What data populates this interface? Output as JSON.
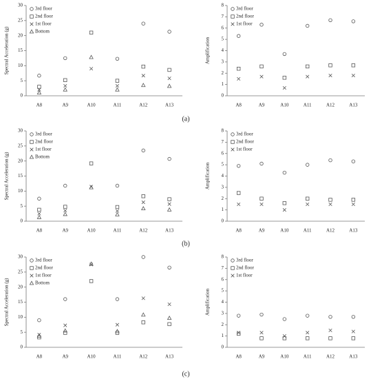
{
  "chart_data": [
    {
      "type": "scatter",
      "y_label": "Spectral Acceleration (g)",
      "categories": [
        "A8",
        "A9",
        "A10",
        "A11",
        "A12",
        "A13"
      ],
      "ylim": [
        0,
        30
      ],
      "yticks": [
        0,
        5,
        10,
        15,
        20,
        25,
        30
      ],
      "legend": "top-left",
      "series": [
        {
          "name": "3rd floor",
          "marker": "circle",
          "color": "#555555",
          "values": [
            6.7,
            12.5,
            null,
            12.3,
            24,
            21.3
          ]
        },
        {
          "name": "2nd floor",
          "marker": "square",
          "color": "#555555",
          "values": [
            3,
            5.2,
            21,
            5,
            9.7,
            8.6
          ]
        },
        {
          "name": "1st floor",
          "marker": "x",
          "color": "#555555",
          "values": [
            2,
            3.3,
            9,
            3.3,
            6.7,
            5.8
          ]
        },
        {
          "name": "Bottom",
          "marker": "triangle",
          "color": "#555555",
          "values": [
            1,
            2,
            12.8,
            2,
            3.5,
            3.2
          ]
        }
      ]
    },
    {
      "type": "scatter",
      "y_label": "Amplification",
      "categories": [
        "A8",
        "A9",
        "A10",
        "A11",
        "A12",
        "A13"
      ],
      "ylim": [
        0,
        8
      ],
      "yticks": [
        0,
        1,
        2,
        3,
        4,
        5,
        6,
        7,
        8
      ],
      "legend": "top-left",
      "series": [
        {
          "name": "3rd floor",
          "marker": "circle",
          "color": "#555555",
          "values": [
            5.3,
            6.3,
            3.7,
            6.2,
            6.7,
            6.6
          ]
        },
        {
          "name": "2nd floor",
          "marker": "square",
          "color": "#555555",
          "values": [
            2.4,
            2.6,
            1.6,
            2.6,
            2.7,
            2.7
          ]
        },
        {
          "name": "1st floor",
          "marker": "x",
          "color": "#555555",
          "values": [
            1.5,
            1.7,
            0.7,
            1.7,
            1.8,
            1.8
          ]
        }
      ]
    },
    {
      "type": "scatter",
      "y_label": "Spectral Acceleration (g)",
      "categories": [
        "A8",
        "A9",
        "A10",
        "A11",
        "A12",
        "A13"
      ],
      "ylim": [
        0,
        30
      ],
      "yticks": [
        0,
        5,
        10,
        15,
        20,
        25,
        30
      ],
      "legend": "top-left",
      "series": [
        {
          "name": "3rd floor",
          "marker": "circle",
          "color": "#555555",
          "values": [
            7.5,
            11.8,
            null,
            11.8,
            23.5,
            20.7
          ]
        },
        {
          "name": "2nd floor",
          "marker": "square",
          "color": "#555555",
          "values": [
            3.8,
            4.8,
            19.2,
            4.7,
            8.3,
            7.3
          ]
        },
        {
          "name": "1st floor",
          "marker": "x",
          "color": "#555555",
          "values": [
            2.5,
            3.5,
            11.5,
            3.4,
            6.3,
            5.7
          ]
        },
        {
          "name": "Bottom",
          "marker": "triangle",
          "color": "#555555",
          "values": [
            1.3,
            2.3,
            11.2,
            2.2,
            4.2,
            3.8
          ]
        }
      ]
    },
    {
      "type": "scatter",
      "y_label": "Amplification",
      "categories": [
        "A8",
        "A9",
        "A10",
        "A11",
        "A12",
        "A13"
      ],
      "ylim": [
        0,
        8
      ],
      "yticks": [
        0,
        1,
        2,
        3,
        4,
        5,
        6,
        7,
        8
      ],
      "legend": "top-left",
      "series": [
        {
          "name": "3rd floor",
          "marker": "circle",
          "color": "#555555",
          "values": [
            4.9,
            5.1,
            4.3,
            5.0,
            5.4,
            5.3
          ]
        },
        {
          "name": "2nd floor",
          "marker": "square",
          "color": "#555555",
          "values": [
            2.5,
            2.0,
            1.6,
            2.0,
            1.9,
            1.9
          ]
        },
        {
          "name": "1st floor",
          "marker": "x",
          "color": "#555555",
          "values": [
            1.5,
            1.5,
            1.0,
            1.5,
            1.5,
            1.5
          ]
        }
      ]
    },
    {
      "type": "scatter",
      "y_label": "Spectral Acceleration (g)",
      "categories": [
        "A8",
        "A9",
        "A10",
        "A11",
        "A12",
        "A13"
      ],
      "ylim": [
        0,
        30
      ],
      "yticks": [
        0,
        5,
        10,
        15,
        20,
        25,
        30
      ],
      "legend": "top-left",
      "series": [
        {
          "name": "3rd floor",
          "marker": "circle",
          "color": "#555555",
          "values": [
            9,
            16,
            null,
            16,
            30,
            26.5
          ]
        },
        {
          "name": "2nd floor",
          "marker": "square",
          "color": "#555555",
          "values": [
            3.3,
            4.8,
            22,
            4.8,
            8.3,
            7.7
          ]
        },
        {
          "name": "1st floor",
          "marker": "x",
          "color": "#555555",
          "values": [
            4.2,
            7.3,
            27.5,
            7.5,
            16.3,
            14.3
          ]
        },
        {
          "name": "Bottom",
          "marker": "triangle",
          "color": "#555555",
          "values": [
            3.8,
            5.5,
            27.7,
            5.3,
            10.8,
            9.7
          ]
        }
      ]
    },
    {
      "type": "scatter",
      "y_label": "Amplification",
      "categories": [
        "A8",
        "A9",
        "A10",
        "A11",
        "A12",
        "A13"
      ],
      "ylim": [
        0,
        8
      ],
      "yticks": [
        0,
        1,
        2,
        3,
        4,
        5,
        6,
        7,
        8
      ],
      "legend": "top-left",
      "series": [
        {
          "name": "3rd floor",
          "marker": "circle",
          "color": "#555555",
          "values": [
            2.8,
            2.9,
            2.5,
            2.8,
            2.7,
            2.7
          ]
        },
        {
          "name": "2nd floor",
          "marker": "square",
          "color": "#555555",
          "values": [
            1.2,
            0.8,
            0.8,
            0.8,
            0.8,
            0.8
          ]
        },
        {
          "name": "1st floor",
          "marker": "x",
          "color": "#555555",
          "values": [
            1.3,
            1.3,
            1.0,
            1.3,
            1.5,
            1.4
          ]
        }
      ]
    }
  ],
  "captions": [
    "(a)",
    "(b)",
    "(c)"
  ]
}
